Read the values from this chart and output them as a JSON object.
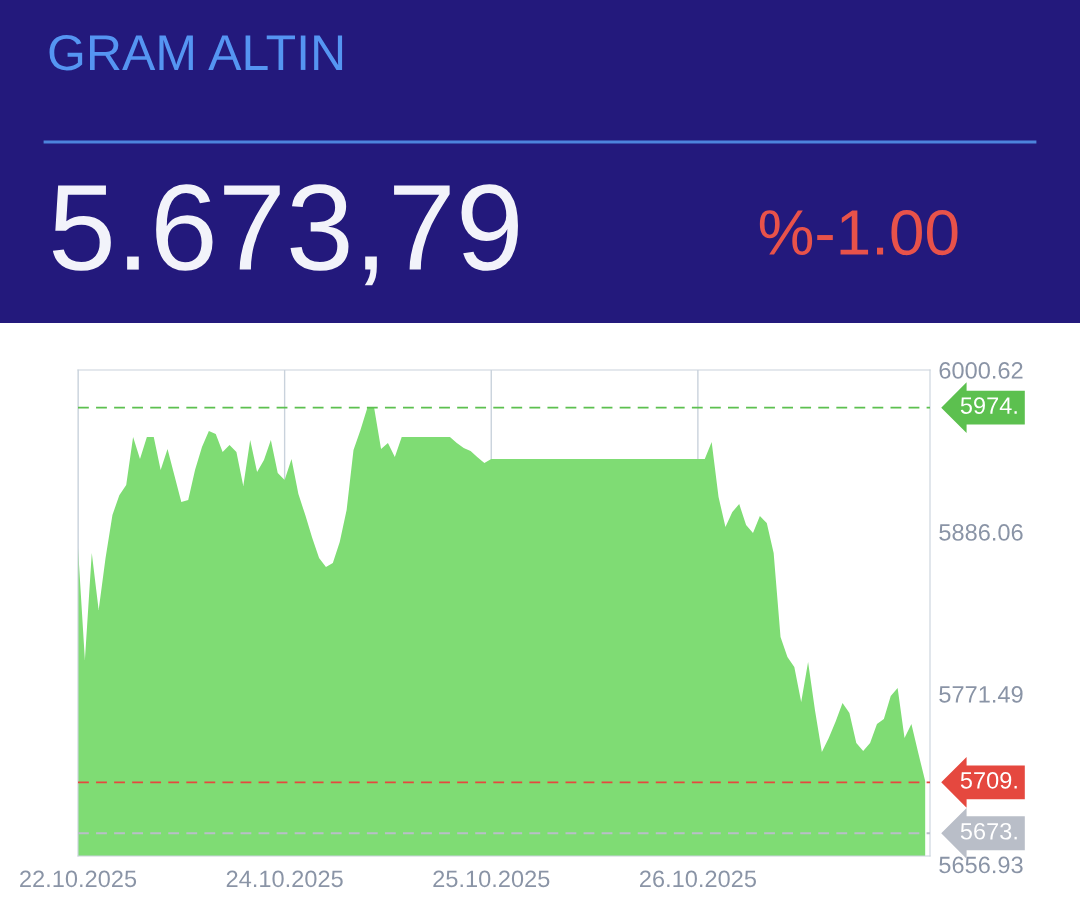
{
  "chart_data": {
    "type": "area",
    "title": "GRAM ALTIN",
    "subtitle": "5.673,79",
    "annotations": [
      "%-1.00"
    ],
    "categories": [
      "22.10.2025",
      null,
      null,
      null,
      null,
      null,
      null,
      null,
      null,
      null,
      null,
      null,
      null,
      null,
      null,
      null,
      null,
      null,
      null,
      null,
      null,
      null,
      null,
      null,
      null,
      null,
      null,
      null,
      null,
      null,
      "24.10.2025",
      null,
      null,
      null,
      null,
      null,
      null,
      null,
      null,
      null,
      null,
      null,
      null,
      null,
      null,
      null,
      null,
      null,
      null,
      null,
      null,
      null,
      null,
      null,
      null,
      null,
      null,
      null,
      null,
      null,
      "25.10.2025",
      null,
      null,
      null,
      null,
      null,
      null,
      null,
      null,
      null,
      null,
      null,
      null,
      null,
      null,
      null,
      null,
      null,
      null,
      null,
      null,
      null,
      null,
      null,
      null,
      null,
      null,
      null,
      null,
      null,
      "26.10.2025",
      null,
      null,
      null,
      null,
      null,
      null,
      null,
      null,
      null,
      null,
      null,
      null,
      null,
      null,
      null,
      null,
      null,
      null,
      null,
      null,
      null,
      null,
      null,
      null,
      null,
      null,
      null,
      null,
      null,
      null,
      null,
      null,
      null
    ],
    "series": [
      {
        "color": "#7fdc74",
        "values": [
          5874.7,
          5795.5,
          5871.2,
          5830.9,
          5867.6,
          5898.1,
          5912.0,
          5919.3,
          5953.2,
          5937.7,
          5953.2,
          5953.2,
          5929.9,
          5944.7,
          5926.0,
          5907.2,
          5908.7,
          5930.0,
          5946.1,
          5957.5,
          5955.3,
          5942.6,
          5947.6,
          5942.6,
          5918.6,
          5951.1,
          5928.5,
          5937.0,
          5951.1,
          5927.8,
          5922.8,
          5937.7,
          5912.9,
          5898.0,
          5882.0,
          5867.6,
          5861.3,
          5864.1,
          5879.0,
          5901.6,
          5944.0,
          5958.0,
          5973.7,
          5973.7,
          5944.7,
          5949.0,
          5939.1,
          5953.2,
          5953.2,
          5953.2,
          5953.2,
          5953.2,
          5953.2,
          5953.2,
          5953.2,
          5949.0,
          5945.4,
          5943.3,
          5939.0,
          5934.8,
          5937.7,
          5937.7,
          5937.7,
          5937.7,
          5937.7,
          5937.7,
          5937.7,
          5937.7,
          5937.7,
          5937.7,
          5937.7,
          5937.7,
          5937.7,
          5937.7,
          5937.7,
          5937.7,
          5937.7,
          5937.7,
          5937.7,
          5937.7,
          5937.7,
          5937.7,
          5937.7,
          5937.7,
          5937.7,
          5937.7,
          5937.7,
          5937.7,
          5937.7,
          5937.7,
          5937.7,
          5937.7,
          5949.7,
          5910.8,
          5889.6,
          5900.2,
          5905.8,
          5891.0,
          5885.3,
          5897.3,
          5892.4,
          5871.2,
          5811.8,
          5797.6,
          5790.6,
          5765.8,
          5794.1,
          5760.0,
          5730.4,
          5740.4,
          5752.0,
          5765.1,
          5758.0,
          5736.8,
          5731.2,
          5736.8,
          5750.3,
          5753.8,
          5770.1,
          5775.7,
          5740.4,
          5750.3,
          5729.7,
          5709.9
        ]
      }
    ],
    "ylim": [
      5656.93,
      6000.62
    ],
    "yticks": [
      5656.93,
      5771.49,
      5886.06,
      6000.62
    ],
    "grid": "x",
    "ref_lines": [
      {
        "axis": "y",
        "value": 5974,
        "label": "5974.",
        "color": "#5cc04f",
        "line_style": "dashed"
      },
      {
        "axis": "y",
        "value": 5709,
        "label": "5709.",
        "color": "#e5483f",
        "line_style": "dashed"
      },
      {
        "axis": "y",
        "value": 5673,
        "label": "5673.",
        "color": "#b9bec8",
        "line_style": "dashed"
      }
    ]
  }
}
